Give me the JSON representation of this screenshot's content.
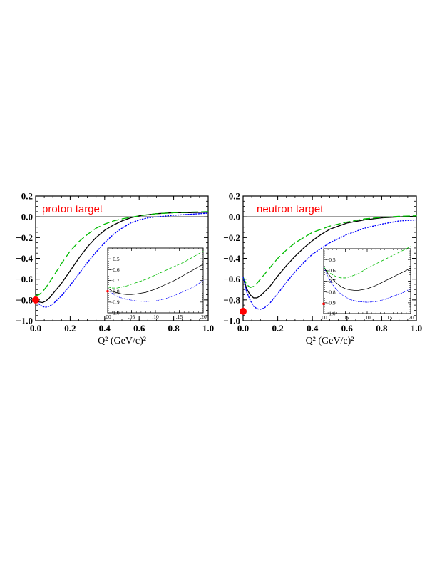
{
  "chart_data": [
    {
      "type": "line",
      "panel_label": "proton target",
      "xlabel": "Q²   (GeV/c)²",
      "xlim": [
        0,
        1.0
      ],
      "ylim": [
        -1.0,
        0.2
      ],
      "xticks": [
        "0.0",
        "0.2",
        "0.4",
        "0.6",
        "0.8",
        "1.0"
      ],
      "yticks": [
        "−1.0",
        "−0.8",
        "−0.6",
        "−0.4",
        "−0.2",
        "0.0",
        "0.2"
      ],
      "reference_line": 0.0,
      "series": [
        {
          "style": "solid",
          "color": "#000000",
          "x": [
            0,
            0.02,
            0.04,
            0.06,
            0.08,
            0.1,
            0.15,
            0.2,
            0.25,
            0.3,
            0.35,
            0.4,
            0.45,
            0.5,
            0.55,
            0.6,
            0.65,
            0.7,
            0.8,
            0.9,
            1.0
          ],
          "y": [
            -0.79,
            -0.82,
            -0.825,
            -0.81,
            -0.78,
            -0.74,
            -0.64,
            -0.52,
            -0.4,
            -0.29,
            -0.2,
            -0.13,
            -0.08,
            -0.04,
            -0.01,
            0.01,
            0.02,
            0.03,
            0.04,
            0.04,
            0.045
          ]
        },
        {
          "style": "dashed",
          "color": "#00bb00",
          "x": [
            0,
            0.02,
            0.04,
            0.06,
            0.08,
            0.1,
            0.15,
            0.2,
            0.25,
            0.3,
            0.35,
            0.4,
            0.45,
            0.5,
            0.6,
            0.7,
            0.8,
            0.9,
            1.0
          ],
          "y": [
            -0.76,
            -0.75,
            -0.72,
            -0.68,
            -0.63,
            -0.58,
            -0.45,
            -0.33,
            -0.24,
            -0.17,
            -0.11,
            -0.07,
            -0.04,
            -0.02,
            0.01,
            0.03,
            0.04,
            0.045,
            0.05
          ]
        },
        {
          "style": "dotted",
          "color": "#0000ff",
          "x": [
            0,
            0.02,
            0.04,
            0.06,
            0.08,
            0.1,
            0.15,
            0.2,
            0.25,
            0.3,
            0.35,
            0.4,
            0.45,
            0.5,
            0.55,
            0.6,
            0.65,
            0.7,
            0.8,
            0.9,
            1.0
          ],
          "y": [
            -0.8,
            -0.84,
            -0.865,
            -0.87,
            -0.86,
            -0.84,
            -0.76,
            -0.66,
            -0.55,
            -0.44,
            -0.34,
            -0.25,
            -0.17,
            -0.11,
            -0.06,
            -0.03,
            -0.01,
            0.0,
            0.015,
            0.025,
            0.035
          ]
        }
      ],
      "data_point": {
        "x": 0.0,
        "y": -0.8,
        "color": "#ff0000"
      },
      "inset": {
        "xlim": [
          0,
          0.2
        ],
        "ylim": [
          -1.0,
          -0.4
        ],
        "xticks": [
          ".00",
          ".05",
          ".10",
          ".15",
          ".20"
        ],
        "yticks": [
          "−1.0",
          "−0.9",
          "−0.8",
          "−0.7",
          "−0.6",
          "−0.5"
        ],
        "series": [
          {
            "style": "solid",
            "color": "#000000",
            "x": [
              0,
              0.01,
              0.02,
              0.03,
              0.04,
              0.05,
              0.06,
              0.08,
              0.1,
              0.12,
              0.14,
              0.16,
              0.18,
              0.2
            ],
            "y": [
              -0.77,
              -0.8,
              -0.815,
              -0.825,
              -0.83,
              -0.83,
              -0.825,
              -0.81,
              -0.78,
              -0.74,
              -0.7,
              -0.65,
              -0.6,
              -0.55
            ]
          },
          {
            "style": "dashed",
            "color": "#00bb00",
            "x": [
              0,
              0.01,
              0.02,
              0.03,
              0.04,
              0.06,
              0.08,
              0.1,
              0.12,
              0.14,
              0.16,
              0.18,
              0.2
            ],
            "y": [
              -0.76,
              -0.77,
              -0.77,
              -0.76,
              -0.75,
              -0.72,
              -0.69,
              -0.65,
              -0.61,
              -0.57,
              -0.53,
              -0.48,
              -0.43
            ]
          },
          {
            "style": "dotted",
            "color": "#0000ff",
            "x": [
              0,
              0.01,
              0.02,
              0.04,
              0.06,
              0.08,
              0.1,
              0.12,
              0.14,
              0.16,
              0.18,
              0.2
            ],
            "y": [
              -0.79,
              -0.82,
              -0.85,
              -0.875,
              -0.89,
              -0.895,
              -0.89,
              -0.87,
              -0.84,
              -0.8,
              -0.76,
              -0.7
            ]
          }
        ],
        "data_point": {
          "x": 0.0,
          "y": -0.8
        }
      }
    },
    {
      "type": "line",
      "panel_label": "neutron target",
      "xlabel": "Q²   (GeV/c)²",
      "xlim": [
        0,
        1.0
      ],
      "ylim": [
        -1.0,
        0.2
      ],
      "xticks": [
        "0.0",
        "0.2",
        "0.4",
        "0.6",
        "0.8",
        "1.0"
      ],
      "yticks": [
        "−1.0",
        "−0.8",
        "−0.6",
        "−0.4",
        "−0.2",
        "0.0",
        "0.2"
      ],
      "reference_line": 0.0,
      "series": [
        {
          "style": "solid",
          "color": "#000000",
          "x": [
            0,
            0.02,
            0.04,
            0.06,
            0.08,
            0.1,
            0.15,
            0.2,
            0.25,
            0.3,
            0.35,
            0.4,
            0.45,
            0.5,
            0.55,
            0.6,
            0.7,
            0.8,
            0.9,
            1.0
          ],
          "y": [
            -0.58,
            -0.69,
            -0.75,
            -0.78,
            -0.78,
            -0.76,
            -0.68,
            -0.57,
            -0.47,
            -0.38,
            -0.3,
            -0.23,
            -0.17,
            -0.12,
            -0.09,
            -0.06,
            -0.03,
            -0.01,
            0.0,
            0.005
          ]
        },
        {
          "style": "dashed",
          "color": "#00bb00",
          "x": [
            0,
            0.02,
            0.04,
            0.06,
            0.08,
            0.1,
            0.15,
            0.2,
            0.25,
            0.3,
            0.35,
            0.4,
            0.5,
            0.6,
            0.7,
            0.8,
            0.9,
            1.0
          ],
          "y": [
            -0.58,
            -0.65,
            -0.68,
            -0.67,
            -0.64,
            -0.6,
            -0.5,
            -0.4,
            -0.32,
            -0.25,
            -0.2,
            -0.15,
            -0.09,
            -0.05,
            -0.02,
            -0.005,
            0.005,
            0.01
          ]
        },
        {
          "style": "dotted",
          "color": "#0000ff",
          "x": [
            0,
            0.02,
            0.04,
            0.06,
            0.08,
            0.1,
            0.12,
            0.15,
            0.2,
            0.25,
            0.3,
            0.35,
            0.4,
            0.5,
            0.6,
            0.7,
            0.8,
            0.9,
            1.0
          ],
          "y": [
            -0.58,
            -0.72,
            -0.8,
            -0.86,
            -0.885,
            -0.89,
            -0.88,
            -0.84,
            -0.74,
            -0.63,
            -0.53,
            -0.44,
            -0.36,
            -0.25,
            -0.17,
            -0.11,
            -0.07,
            -0.04,
            -0.03
          ]
        }
      ],
      "data_point": {
        "x": 0.0,
        "y": -0.91,
        "color": "#ff0000"
      },
      "inset": {
        "xlim": [
          0,
          0.2
        ],
        "ylim": [
          -1.0,
          -0.4
        ],
        "xticks": [
          ".00",
          ".05",
          ".10",
          ".15",
          ".20"
        ],
        "yticks": [
          "−1.0",
          "−0.9",
          "−0.8",
          "−0.7",
          "−0.6",
          "−0.5"
        ],
        "series": [
          {
            "style": "solid",
            "color": "#000000",
            "x": [
              0,
              0.01,
              0.02,
              0.03,
              0.04,
              0.05,
              0.06,
              0.07,
              0.08,
              0.1,
              0.12,
              0.14,
              0.16,
              0.18,
              0.2
            ],
            "y": [
              -0.57,
              -0.63,
              -0.68,
              -0.72,
              -0.75,
              -0.77,
              -0.78,
              -0.785,
              -0.785,
              -0.77,
              -0.74,
              -0.7,
              -0.66,
              -0.62,
              -0.58
            ]
          },
          {
            "style": "dashed",
            "color": "#00bb00",
            "x": [
              0,
              0.01,
              0.02,
              0.03,
              0.04,
              0.05,
              0.06,
              0.08,
              0.1,
              0.12,
              0.14,
              0.16,
              0.18,
              0.2
            ],
            "y": [
              -0.57,
              -0.61,
              -0.64,
              -0.66,
              -0.67,
              -0.67,
              -0.66,
              -0.63,
              -0.58,
              -0.54,
              -0.5,
              -0.46,
              -0.42,
              -0.38
            ]
          },
          {
            "style": "dotted",
            "color": "#0000ff",
            "x": [
              0,
              0.01,
              0.02,
              0.03,
              0.04,
              0.06,
              0.08,
              0.1,
              0.12,
              0.14,
              0.16,
              0.18,
              0.2
            ],
            "y": [
              -0.57,
              -0.66,
              -0.73,
              -0.78,
              -0.82,
              -0.87,
              -0.89,
              -0.895,
              -0.89,
              -0.87,
              -0.84,
              -0.81,
              -0.77
            ]
          }
        ],
        "data_point": {
          "x": 0.0,
          "y": -0.91
        }
      }
    }
  ]
}
